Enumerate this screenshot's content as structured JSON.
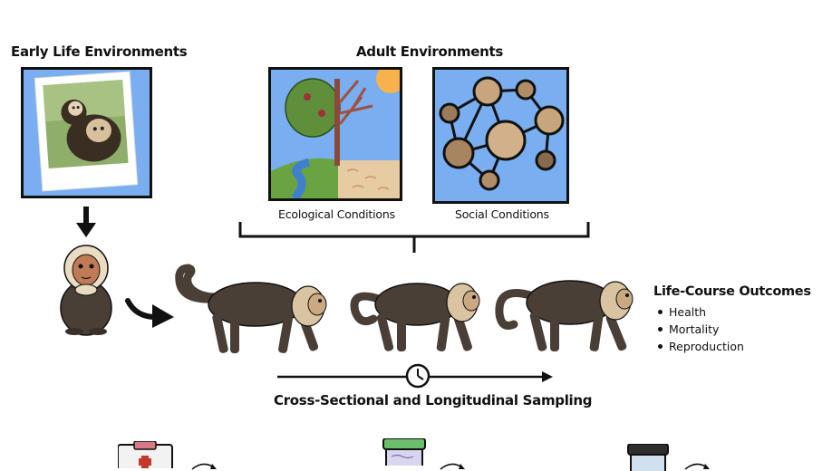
{
  "headings": {
    "early_life": "Early Life Environments",
    "adult": "Adult Environments"
  },
  "captions": {
    "ecological": "Ecological Conditions",
    "social": "Social Conditions"
  },
  "outcomes": {
    "title": "Life-Course Outcomes",
    "items": [
      "Health",
      "Mortality",
      "Reproduction"
    ]
  },
  "sampling_label": "Cross-Sectional and Longitudinal Sampling",
  "colors": {
    "panel_blue": "#79aef0",
    "fur_dark": "#4a3f36",
    "face_tan": "#d9c3a0",
    "sun": "#f7b24b",
    "water": "#3f7fd0",
    "grass": "#6aa442",
    "sand": "#e7cba2"
  }
}
